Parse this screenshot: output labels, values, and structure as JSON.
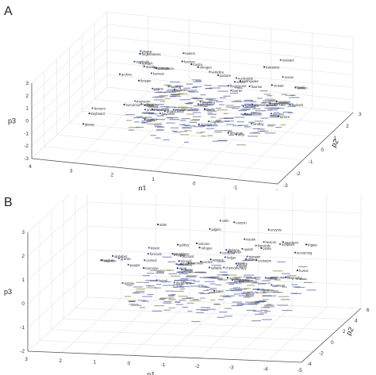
{
  "chart_data": [
    {
      "panel": "A",
      "type": "scatter",
      "projection": "3d",
      "xlabel": "p1",
      "ylabel": "p2",
      "zlabel": "p3",
      "x_ticks": [
        "4",
        "3",
        "2",
        "1",
        "0",
        "-1",
        "-2"
      ],
      "y_ticks": [
        "-3",
        "-2",
        "-1",
        "0",
        "1",
        "2",
        "3"
      ],
      "z_ticks": [
        "-3",
        "-2",
        "-1",
        "0",
        "1",
        "2",
        "3"
      ],
      "xlim": [
        -3,
        4
      ],
      "ylim": [
        -3,
        3
      ],
      "zlim": [
        -3,
        3
      ],
      "grid": true,
      "point_labels": [
        "fossil",
        "landfay",
        "biotite",
        "fulvamite",
        "flotsam",
        "symbolio",
        "broadcastal",
        "fanning",
        "morphorid",
        "fluorescent",
        "sofware",
        "emulation",
        "cognitive",
        "relaxant",
        "earthquake",
        "pneumonia",
        "vowel",
        "squirrel",
        "forgetfulness",
        "teaching",
        "translation",
        "nucleotide",
        "ambulance",
        "plague",
        "anagram",
        "strategy",
        "humorous",
        "fortunate",
        "clarity",
        "lexicon",
        "fracture",
        "monsoon",
        "glassy",
        "bedrock",
        "pasture",
        "epitaph",
        "mosaic",
        "chemistry",
        "transistor",
        "barrier",
        "invasion",
        "fluorine",
        "catalyst",
        "vertebra",
        "algebra",
        "lantern",
        "torrent",
        "harvest",
        "kingdom",
        "prairie",
        "keyboard",
        "sapling",
        "archive",
        "orbit",
        "nitrogen",
        "ocean",
        "voltage",
        "mantle",
        "tundra",
        "ferment"
      ]
    },
    {
      "panel": "B",
      "type": "scatter",
      "projection": "3d",
      "xlabel": "p1",
      "ylabel": "p2",
      "zlabel": "p3",
      "x_ticks": [
        "3",
        "2",
        "1",
        "0",
        "-1",
        "-2",
        "-3",
        "-4",
        "-5"
      ],
      "y_ticks": [
        "-4",
        "-2",
        "0",
        "2",
        "4",
        "6"
      ],
      "z_ticks": [
        "-2",
        "-1",
        "0",
        "1",
        "2",
        "3"
      ],
      "xlim": [
        -5,
        3
      ],
      "ylim": [
        -4,
        6
      ],
      "zlim": [
        -2,
        3
      ],
      "grid": true,
      "point_labels": [
        "screaming",
        "comments",
        "humor",
        "kinetic",
        "wheelchair",
        "diploma",
        "fishing",
        "chemotherapy",
        "recitation",
        "sedation",
        "migration",
        "homicide",
        "biography",
        "forecast",
        "mammal",
        "liquor",
        "pendulum",
        "hybrid",
        "spectrum",
        "tsunami",
        "gallery",
        "blizzard",
        "ritual",
        "caravan",
        "syllable",
        "quartz",
        "pirate",
        "meadow",
        "refugee",
        "compost",
        "volcano",
        "turbine",
        "alphabet",
        "census",
        "oxygen",
        "beacon",
        "canyon",
        "ledger",
        "mineral",
        "puppet",
        "harbor",
        "scripture",
        "cactus",
        "vaccine",
        "glacier",
        "pilgrim",
        "fabric",
        "magnet",
        "thunder",
        "walrus",
        "atlas",
        "cello",
        "dialect",
        "enzyme",
        "frigate",
        "granite",
        "hormone",
        "insulin",
        "jasmine",
        "kernel"
      ]
    }
  ]
}
